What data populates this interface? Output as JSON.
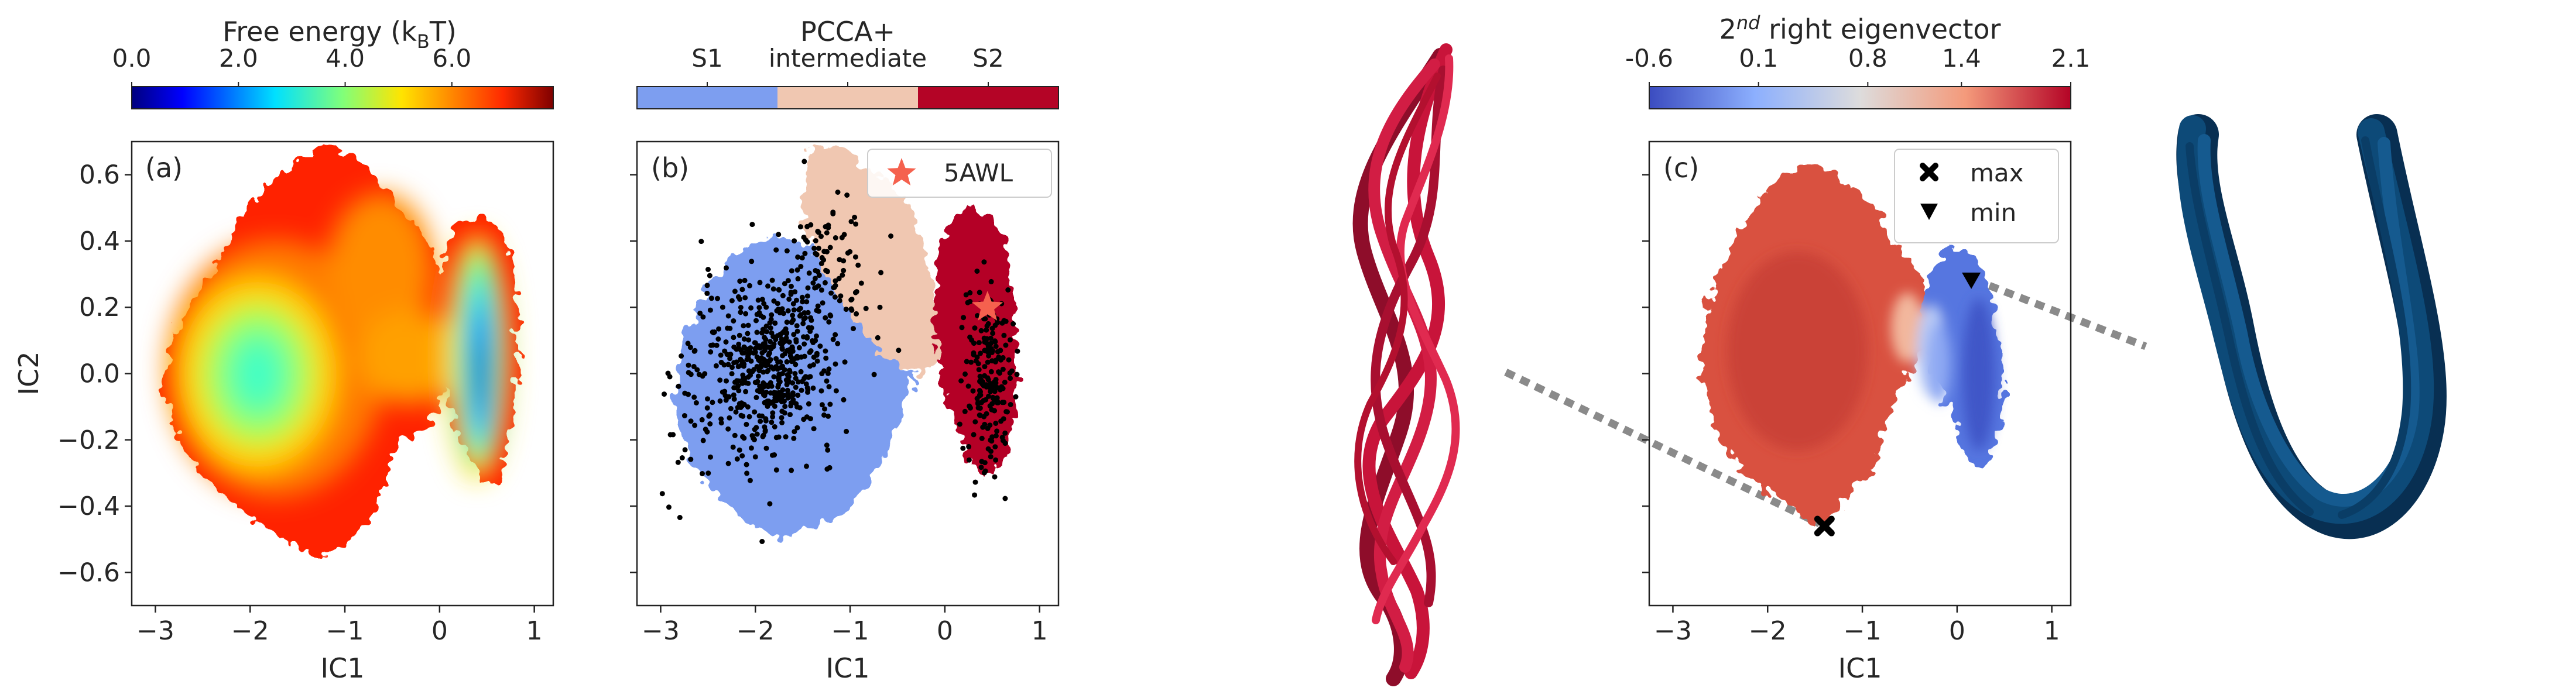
{
  "chart_data": [
    {
      "id": "a",
      "type": "heatmap",
      "panel_label": "(a)",
      "xlabel": "IC1",
      "ylabel": "IC2",
      "xticks": [
        "−3",
        "−2",
        "−1",
        "0",
        "1"
      ],
      "yticks": [
        "−0.6",
        "−0.4",
        "−0.2",
        "0.0",
        "0.2",
        "0.4",
        "0.6"
      ],
      "xlim": [
        -3.25,
        1.2
      ],
      "ylim": [
        -0.7,
        0.7
      ],
      "colorbar": {
        "title": "Free energy (k",
        "title_sub": "B",
        "title_end": "T)",
        "ticks": [
          "0.0",
          "2.0",
          "4.0",
          "6.0"
        ],
        "range": [
          0,
          7.9
        ],
        "colormap": "jet"
      },
      "basins": [
        {
          "x": -1.85,
          "y": 0.0,
          "free_energy_min": 1.8
        },
        {
          "x": 0.45,
          "y": 0.0,
          "free_energy_min": 0.0
        }
      ]
    },
    {
      "id": "b",
      "type": "scatter",
      "panel_label": "(b)",
      "xlabel": "IC1",
      "xticks": [
        "−3",
        "−2",
        "−1",
        "0",
        "1"
      ],
      "xlim": [
        -3.25,
        1.2
      ],
      "ylim": [
        -0.7,
        0.7
      ],
      "colorbar": {
        "title": "PCCA+",
        "categories": [
          "S1",
          "intermediate",
          "S2"
        ],
        "colors": [
          "#7d9ef0",
          "#f0c7b1",
          "#b40426"
        ]
      },
      "legend": {
        "label": "5AWL",
        "marker": "star",
        "color": "#f5614e",
        "placement": "top-right"
      },
      "reference_point": {
        "x": 0.45,
        "y": 0.2
      }
    },
    {
      "id": "c",
      "type": "heatmap",
      "panel_label": "(c)",
      "xlabel": "IC1",
      "xticks": [
        "−3",
        "−2",
        "−1",
        "0",
        "1"
      ],
      "xlim": [
        -3.25,
        1.2
      ],
      "ylim": [
        -0.7,
        0.7
      ],
      "colorbar": {
        "title_pre": "2",
        "title_sup": "nd",
        "title_post": " right eigenvector",
        "ticks": [
          "-0.6",
          "0.1",
          "0.8",
          "1.4",
          "2.1"
        ],
        "range": [
          -0.6,
          2.1
        ],
        "colormap": "coolwarm"
      },
      "legend": {
        "entries": [
          "max",
          "min"
        ],
        "markers": [
          "cross",
          "triangle-down"
        ],
        "placement": "top-right"
      },
      "max_point": {
        "x": -1.4,
        "y": -0.46
      },
      "min_point": {
        "x": 0.15,
        "y": 0.28
      }
    }
  ],
  "structures": {
    "extended_color": "#c8143a",
    "hairpin_color": "#0d4a78"
  },
  "connector_color": "#8a8a8a"
}
